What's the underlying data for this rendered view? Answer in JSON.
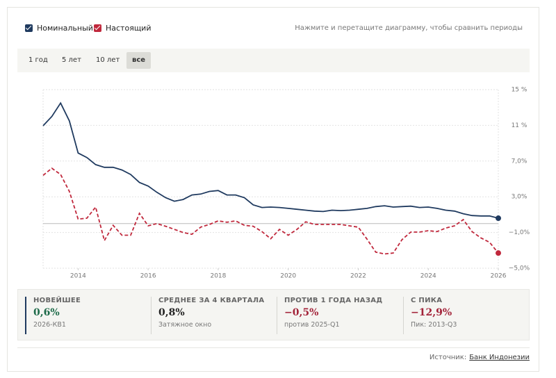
{
  "chart_data": {
    "type": "line",
    "x": [
      2013,
      2013.25,
      2013.5,
      2013.75,
      2014,
      2014.25,
      2014.5,
      2014.75,
      2015,
      2015.25,
      2015.5,
      2015.75,
      2016,
      2016.25,
      2016.5,
      2016.75,
      2017,
      2017.25,
      2017.5,
      2017.75,
      2018,
      2018.25,
      2018.5,
      2018.75,
      2019,
      2019.25,
      2019.5,
      2019.75,
      2020,
      2020.25,
      2020.5,
      2020.75,
      2021,
      2021.25,
      2021.5,
      2021.75,
      2022,
      2022.25,
      2022.5,
      2022.75,
      2023,
      2023.25,
      2023.5,
      2023.75,
      2024,
      2024.25,
      2024.5,
      2024.75,
      2025,
      2025.25,
      2025.5,
      2025.75,
      2026
    ],
    "series": [
      {
        "name": "Номинальный",
        "color": "#1f3a5f",
        "dash": false,
        "values": [
          10.95,
          12.0,
          13.5,
          11.5,
          7.9,
          7.4,
          6.6,
          6.3,
          6.3,
          6.0,
          5.5,
          4.6,
          4.2,
          3.5,
          2.9,
          2.5,
          2.7,
          3.2,
          3.3,
          3.6,
          3.7,
          3.2,
          3.2,
          2.9,
          2.1,
          1.8,
          1.85,
          1.8,
          1.7,
          1.6,
          1.5,
          1.4,
          1.35,
          1.5,
          1.45,
          1.5,
          1.6,
          1.7,
          1.9,
          2.0,
          1.85,
          1.9,
          1.95,
          1.8,
          1.85,
          1.7,
          1.5,
          1.4,
          1.1,
          0.9,
          0.85,
          0.85,
          0.6
        ]
      },
      {
        "name": "Настоящий",
        "color": "#c0283c",
        "dash": true,
        "values": [
          5.4,
          6.2,
          5.5,
          3.6,
          0.5,
          0.6,
          1.85,
          -1.9,
          -0.2,
          -1.3,
          -1.3,
          1.15,
          -0.25,
          0,
          -0.3,
          -0.65,
          -1.0,
          -1.2,
          -0.4,
          -0.1,
          0.3,
          0.15,
          0.3,
          -0.2,
          -0.3,
          -0.9,
          -1.7,
          -0.65,
          -1.3,
          -0.65,
          0.2,
          -0.1,
          -0.1,
          -0.1,
          -0.1,
          -0.25,
          -0.4,
          -1.75,
          -3.2,
          -3.4,
          -3.3,
          -1.8,
          -0.95,
          -0.95,
          -0.8,
          -0.9,
          -0.5,
          -0.25,
          0.45,
          -0.9,
          -1.6,
          -2.1,
          -3.3
        ]
      }
    ],
    "xlim": [
      2013,
      2026
    ],
    "xticks": [
      2014,
      2016,
      2018,
      2020,
      2022,
      2024,
      2026
    ],
    "ylim": [
      -5,
      15
    ],
    "yticks": [
      {
        "value": -5,
        "label": "−5,0%"
      },
      {
        "value": -1,
        "label": "−1,0%"
      },
      {
        "value": 3,
        "label": "3,0%"
      },
      {
        "value": 7,
        "label": "7,0%"
      },
      {
        "value": 11,
        "label": "11 %"
      },
      {
        "value": 15,
        "label": "15 %"
      }
    ],
    "grid": true
  },
  "hint": "Нажмите и перетащите диаграмму, чтобы сравнить периоды",
  "tabs": [
    "1 год",
    "5 лет",
    "10 лет",
    "все"
  ],
  "active_tab": 3,
  "stats": [
    {
      "label": "НОВЕЙШЕЕ",
      "value": "0,6%",
      "sub": "2026-КВ1",
      "color": "#1e6b4a"
    },
    {
      "label": "СРЕДНЕЕ ЗА 4 КВАРТАЛА",
      "value": "0,8%",
      "sub": "Затяжное окно",
      "color": "#222222"
    },
    {
      "label": "ПРОТИВ 1 ГОДА НАЗАД",
      "value": "−0,5%",
      "sub": "против 2025-Q1",
      "color": "#a3243a"
    },
    {
      "label": "С ПИКА",
      "value": "−12,9%",
      "sub": "Пик: 2013-Q3",
      "color": "#a3243a"
    }
  ],
  "source": {
    "label": "Источник:",
    "link": "Банк Индонезии"
  }
}
